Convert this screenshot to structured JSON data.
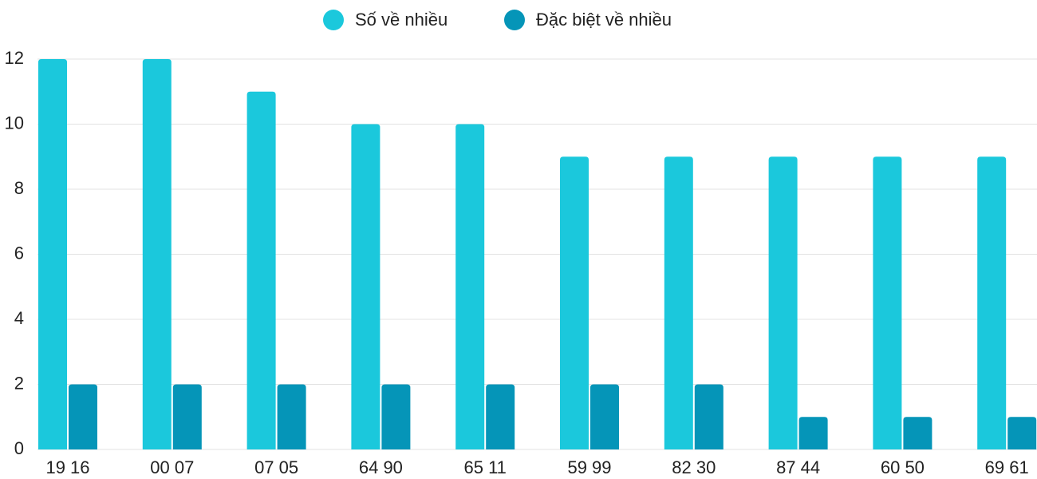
{
  "chart_data": {
    "type": "bar",
    "categories": [
      "19 16",
      "00 07",
      "07 05",
      "64 90",
      "65 11",
      "59 99",
      "82 30",
      "87 44",
      "60 50",
      "69 61"
    ],
    "series": [
      {
        "name": "Số về nhiều",
        "color": "#1bc8dc",
        "values": [
          12,
          12,
          11,
          10,
          10,
          9,
          9,
          9,
          9,
          9
        ]
      },
      {
        "name": "Đặc biệt về nhiều",
        "color": "#0595b8",
        "values": [
          2,
          2,
          2,
          2,
          2,
          2,
          2,
          1,
          1,
          1
        ]
      }
    ],
    "ylim": [
      0,
      12
    ],
    "yticks": [
      0,
      2,
      4,
      6,
      8,
      10,
      12
    ],
    "grid": true,
    "legend": "top"
  }
}
